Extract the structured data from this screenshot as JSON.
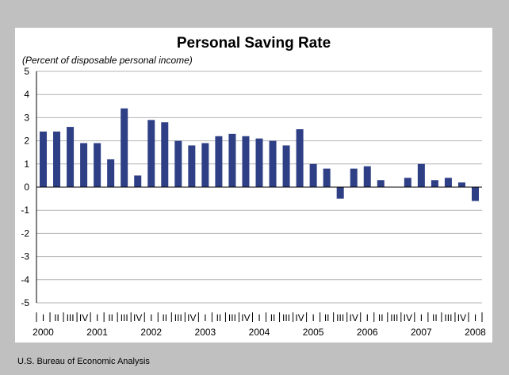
{
  "title": "Personal Saving Rate",
  "subtitle": "(Percent of disposable personal income)",
  "source": "U.S. Bureau of Economic Analysis",
  "colors": {
    "bar": "#2e3f86",
    "grid": "#b4b4b4",
    "frame_background": "#c0c0c0",
    "panel_background": "#ffffff"
  },
  "chart_data": {
    "type": "bar",
    "title": "Personal Saving Rate",
    "ylabel": "(Percent of disposable personal income)",
    "xlabel": "",
    "ylim": [
      -5,
      5
    ],
    "yticks": [
      5,
      4,
      3,
      2,
      1,
      0,
      -1,
      -2,
      -3,
      -4,
      -5
    ],
    "grid": true,
    "legend": "none",
    "categories": [
      "I",
      "II",
      "III",
      "IV",
      "I",
      "II",
      "III",
      "IV",
      "I",
      "II",
      "III",
      "IV",
      "I",
      "II",
      "III",
      "IV",
      "I",
      "II",
      "III",
      "IV",
      "I",
      "II",
      "III",
      "IV",
      "I",
      "II",
      "III",
      "IV",
      "I",
      "II",
      "III",
      "IV",
      "I"
    ],
    "years": [
      "2000",
      "2001",
      "2002",
      "2003",
      "2004",
      "2005",
      "2006",
      "2007",
      "2008"
    ],
    "values": [
      2.4,
      2.4,
      2.6,
      1.9,
      1.9,
      1.2,
      3.4,
      0.5,
      2.9,
      2.8,
      2.0,
      1.8,
      1.9,
      2.2,
      2.3,
      2.2,
      2.1,
      2.0,
      1.8,
      2.5,
      1.0,
      0.8,
      -0.5,
      0.8,
      0.9,
      0.3,
      0.0,
      0.4,
      1.0,
      0.3,
      0.4,
      0.2,
      -0.6
    ]
  }
}
